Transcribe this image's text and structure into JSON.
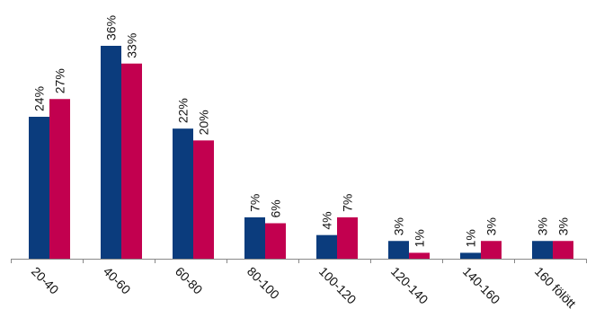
{
  "chart_data": {
    "type": "bar",
    "categories": [
      "20-40",
      "40-60",
      "60-80",
      "80-100",
      "100-120",
      "120-140",
      "140-160",
      "160 fölött"
    ],
    "series": [
      {
        "color": "#0B3C7D",
        "values": [
          24,
          36,
          22,
          7,
          4,
          3,
          1,
          3
        ]
      },
      {
        "color": "#C2004F",
        "values": [
          27,
          33,
          20,
          6,
          7,
          1,
          3,
          3
        ]
      }
    ],
    "data_labels": [
      [
        "24%",
        "36%",
        "22%",
        "7%",
        "4%",
        "3%",
        "1%",
        "3%"
      ],
      [
        "27%",
        "33%",
        "20%",
        "6%",
        "7%",
        "1%",
        "3%",
        "3%"
      ]
    ],
    "ylim": [
      0,
      40
    ],
    "grid": false,
    "legend": "none",
    "axis_color": "#888888"
  }
}
